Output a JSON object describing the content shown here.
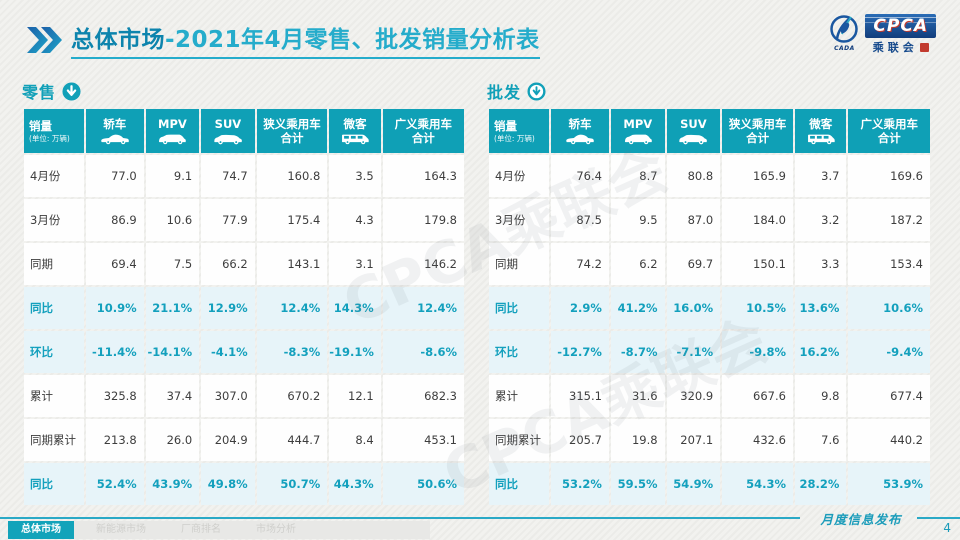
{
  "header": {
    "title_bold": "总体市场",
    "title_rest": "-2021年4月零售、批发销量分析表"
  },
  "logo": {
    "cpca": "CPCA",
    "cada": "CADA",
    "cn": "乘联会"
  },
  "watermark": "CPCA乘联会",
  "columns": [
    {
      "label": "销量",
      "sub": "(单位: 万辆)",
      "icon": null
    },
    {
      "label": "轿车",
      "icon": "sedan-icon"
    },
    {
      "label": "MPV",
      "icon": "mpv-icon"
    },
    {
      "label": "SUV",
      "icon": "suv-icon"
    },
    {
      "label": "狭义乘用车",
      "label2": "合计",
      "icon": null
    },
    {
      "label": "微客",
      "icon": "minibus-icon"
    },
    {
      "label": "广义乘用车",
      "label2": "合计",
      "icon": null
    }
  ],
  "tables": [
    {
      "title": "零售",
      "rows": [
        {
          "label": "4月份",
          "highlight": false,
          "values": [
            "77.0",
            "9.1",
            "74.7",
            "160.8",
            "3.5",
            "164.3"
          ]
        },
        {
          "label": "3月份",
          "highlight": false,
          "values": [
            "86.9",
            "10.6",
            "77.9",
            "175.4",
            "4.3",
            "179.8"
          ]
        },
        {
          "label": "同期",
          "highlight": false,
          "values": [
            "69.4",
            "7.5",
            "66.2",
            "143.1",
            "3.1",
            "146.2"
          ]
        },
        {
          "label": "同比",
          "highlight": true,
          "values": [
            "10.9%",
            "21.1%",
            "12.9%",
            "12.4%",
            "14.3%",
            "12.4%"
          ]
        },
        {
          "label": "环比",
          "highlight": true,
          "values": [
            "-11.4%",
            "-14.1%",
            "-4.1%",
            "-8.3%",
            "-19.1%",
            "-8.6%"
          ]
        },
        {
          "label": "累计",
          "highlight": false,
          "values": [
            "325.8",
            "37.4",
            "307.0",
            "670.2",
            "12.1",
            "682.3"
          ]
        },
        {
          "label": "同期累计",
          "highlight": false,
          "values": [
            "213.8",
            "26.0",
            "204.9",
            "444.7",
            "8.4",
            "453.1"
          ]
        },
        {
          "label": "同比",
          "highlight": true,
          "values": [
            "52.4%",
            "43.9%",
            "49.8%",
            "50.7%",
            "44.3%",
            "50.6%"
          ]
        }
      ]
    },
    {
      "title": "批发",
      "rows": [
        {
          "label": "4月份",
          "highlight": false,
          "values": [
            "76.4",
            "8.7",
            "80.8",
            "165.9",
            "3.7",
            "169.6"
          ]
        },
        {
          "label": "3月份",
          "highlight": false,
          "values": [
            "87.5",
            "9.5",
            "87.0",
            "184.0",
            "3.2",
            "187.2"
          ]
        },
        {
          "label": "同期",
          "highlight": false,
          "values": [
            "74.2",
            "6.2",
            "69.7",
            "150.1",
            "3.3",
            "153.4"
          ]
        },
        {
          "label": "同比",
          "highlight": true,
          "values": [
            "2.9%",
            "41.2%",
            "16.0%",
            "10.5%",
            "13.6%",
            "10.6%"
          ]
        },
        {
          "label": "环比",
          "highlight": true,
          "values": [
            "-12.7%",
            "-8.7%",
            "-7.1%",
            "-9.8%",
            "16.2%",
            "-9.4%"
          ]
        },
        {
          "label": "累计",
          "highlight": false,
          "values": [
            "315.1",
            "31.6",
            "320.9",
            "667.6",
            "9.8",
            "677.4"
          ]
        },
        {
          "label": "同期累计",
          "highlight": false,
          "values": [
            "205.7",
            "19.8",
            "207.1",
            "432.6",
            "7.6",
            "440.2"
          ]
        },
        {
          "label": "同比",
          "highlight": true,
          "values": [
            "53.2%",
            "59.5%",
            "54.9%",
            "54.3%",
            "28.2%",
            "53.9%"
          ]
        }
      ]
    }
  ],
  "footer": {
    "tabs": [
      {
        "label": "总体市场",
        "active": true
      },
      {
        "label": "新能源市场",
        "active": false
      },
      {
        "label": "厂商排名",
        "active": false
      },
      {
        "label": "市场分析",
        "active": false
      }
    ],
    "caption": "月度信息发布",
    "page": "4"
  },
  "colors": {
    "teal": "#0fa0b6",
    "teal_text": "#13a0bd",
    "highlight_bg": "#e7f4f9",
    "title_dark": "#0d84ad",
    "title_light": "#25accb",
    "logo_blue": "#123d7c",
    "logo_red": "#c23b2e"
  }
}
